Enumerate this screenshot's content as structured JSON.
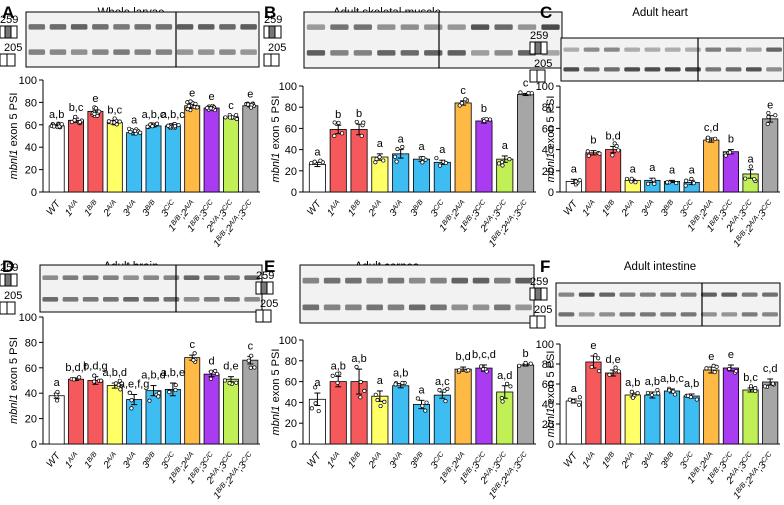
{
  "figure": {
    "common": {
      "categories": [
        "WT",
        "1A/A",
        "1B/B",
        "2A/A",
        "3A/A",
        "3B/B",
        "3C/C",
        "1B/B;2A/A",
        "1B/B;3C/C",
        "2A/A;3C/C",
        "1B/B;2A/A;3C/C"
      ],
      "colors": [
        "#ffffff",
        "#f5595b",
        "#f5595b",
        "#ffff66",
        "#3ebdf2",
        "#3ebdf2",
        "#3ebdf2",
        "#ffba45",
        "#a93cf0",
        "#c0f056",
        "#a6a6a6"
      ],
      "ylabel_gene": "mbnl1",
      "ylabel_rest": " exon 5 PSI",
      "yticks": [
        0,
        20,
        40,
        60,
        80,
        100
      ],
      "ylim": [
        0,
        100
      ],
      "marker_top": "259",
      "marker_bottom": "205"
    },
    "panels": [
      {
        "letter": "A",
        "title": "Whole larvae"
      },
      {
        "letter": "B",
        "title": "Adult skeletal muscle"
      },
      {
        "letter": "C",
        "title": "Adult heart"
      },
      {
        "letter": "D",
        "title": "Adult brain"
      },
      {
        "letter": "E",
        "title": "Adult cornea"
      },
      {
        "letter": "F",
        "title": "Adult intestine"
      }
    ]
  },
  "chart_data": [
    {
      "type": "bar",
      "panel": "A",
      "title": "Whole larvae",
      "ylabel": "mbnl1 exon 5 PSI",
      "ylim": [
        0,
        100
      ],
      "categories": [
        "WT",
        "1A/A",
        "1B/B",
        "2A/A",
        "3A/A",
        "3B/B",
        "3C/C",
        "1B/B;2A/A",
        "1B/B;3C/C",
        "2A/A;3C/C",
        "1B/B;2A/A;3C/C"
      ],
      "values": [
        59,
        64,
        72,
        62,
        53,
        59,
        59,
        77,
        75,
        67,
        77
      ],
      "errors": [
        1,
        2,
        2,
        2,
        2,
        1,
        1,
        2,
        1,
        1,
        1
      ],
      "letters": [
        "a,b",
        "b,c",
        "e",
        "b,c",
        "a",
        "a,b,c",
        "a,b,c",
        "e",
        "e",
        "c",
        "e"
      ]
    },
    {
      "type": "bar",
      "panel": "B",
      "title": "Adult skeletal muscle",
      "ylabel": "mbnl1 exon 5 PSI",
      "ylim": [
        0,
        100
      ],
      "categories": [
        "WT",
        "1A/A",
        "1B/B",
        "2A/A",
        "3A/A",
        "3B/B",
        "3C/C",
        "1B/B;2A/A",
        "1B/B;3C/C",
        "2A/A;3C/C",
        "1B/B;2A/A;3C/C"
      ],
      "values": [
        26,
        59,
        59,
        33,
        36,
        31,
        28,
        84,
        67,
        31,
        92
      ],
      "errors": [
        2,
        4,
        5,
        3,
        4,
        2,
        2,
        2,
        2,
        3,
        1
      ],
      "letters": [
        "a",
        "b",
        "b",
        "a",
        "a",
        "a",
        "a",
        "c",
        "b",
        "a",
        "c"
      ]
    },
    {
      "type": "bar",
      "panel": "C",
      "title": "Adult heart",
      "ylabel": "mbnl1 exon 5 PSI",
      "ylim": [
        0,
        100
      ],
      "categories": [
        "WT",
        "1A/A",
        "1B/B",
        "2A/A",
        "3A/A",
        "3B/B",
        "3C/C",
        "1B/B;2A/A",
        "1B/B;3C/C",
        "2A/A;3C/C",
        "1B/B;2A/A;3C/C"
      ],
      "values": [
        10,
        37,
        40,
        11,
        11,
        10,
        9,
        49,
        38,
        17,
        69
      ],
      "errors": [
        2,
        2,
        3,
        1,
        2,
        1,
        2,
        2,
        2,
        4,
        3
      ],
      "letters": [
        "a",
        "b",
        "b,d",
        "a",
        "a",
        "a",
        "a",
        "c,d",
        "b",
        "a",
        "e"
      ]
    },
    {
      "type": "bar",
      "panel": "D",
      "title": "Adult brain",
      "ylabel": "mbnl1 exon 5 PSI",
      "ylim": [
        0,
        100
      ],
      "categories": [
        "WT",
        "1A/A",
        "1B/B",
        "2A/A",
        "3A/A",
        "3B/B",
        "3C/C",
        "1B/B;2A/A",
        "1B/B;3C/C",
        "2A/A;3C/C",
        "1B/B;2A/A;3C/C"
      ],
      "values": [
        38,
        51,
        50,
        46,
        35,
        42,
        43,
        68,
        55,
        51,
        66
      ],
      "errors": [
        2,
        1,
        3,
        2,
        4,
        4,
        5,
        2,
        2,
        2,
        3
      ],
      "letters": [
        "a",
        "b,d,f",
        "b,d,g",
        "a,b,d",
        "a,e,f,g",
        "a,b,d",
        "a,b,e",
        "c",
        "d",
        "d,e",
        "c"
      ]
    },
    {
      "type": "bar",
      "panel": "E",
      "title": "Adult cornea",
      "ylabel": "mbnl1 exon 5 PSI",
      "ylim": [
        0,
        100
      ],
      "categories": [
        "WT",
        "1A/A",
        "1B/B",
        "2A/A",
        "3A/A",
        "3B/B",
        "3C/C",
        "1B/B;2A/A",
        "1B/B;3C/C",
        "2A/A;3C/C",
        "1B/B;2A/A;3C/C"
      ],
      "values": [
        43,
        60,
        60,
        46,
        56,
        38,
        47,
        72,
        73,
        50,
        76
      ],
      "errors": [
        6,
        5,
        12,
        5,
        2,
        4,
        3,
        2,
        3,
        6,
        1
      ],
      "letters": [
        "a",
        "a,b",
        "a,b",
        "a",
        "a,b",
        "a",
        "a,c",
        "b,d",
        "b,c,d",
        "a,d",
        "b"
      ]
    },
    {
      "type": "bar",
      "panel": "F",
      "title": "Adult intestine",
      "ylabel": "mbnl1 exon 5 PSI",
      "ylim": [
        0,
        100
      ],
      "categories": [
        "WT",
        "1A/A",
        "1B/B",
        "2A/A",
        "3A/A",
        "3B/B",
        "3C/C",
        "1B/B;2A/A",
        "1B/B;3C/C",
        "2A/A;3C/C",
        "1B/B;2A/A;3C/C"
      ],
      "values": [
        43,
        82,
        71,
        49,
        49,
        53,
        48,
        74,
        76,
        54,
        62
      ],
      "errors": [
        2,
        6,
        3,
        2,
        3,
        2,
        2,
        3,
        3,
        2,
        3
      ],
      "letters": [
        "a",
        "e",
        "d,e",
        "a,b",
        "a,b",
        "a,b,c",
        "a,b",
        "e",
        "e",
        "b,c",
        "c,d"
      ]
    }
  ]
}
